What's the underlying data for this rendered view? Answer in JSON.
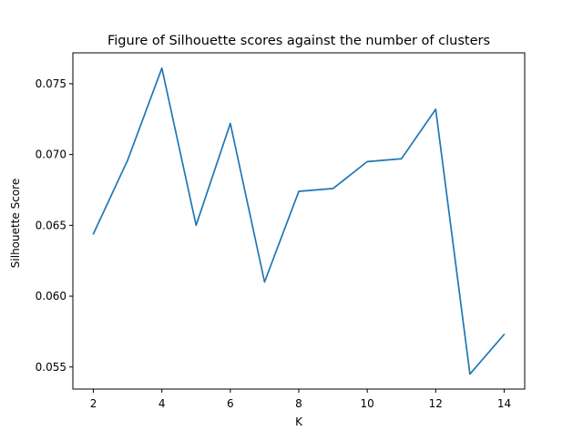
{
  "chart_data": {
    "type": "line",
    "title": "Figure of Silhouette scores against the number of clusters",
    "xlabel": "K",
    "ylabel": "Silhouette Score",
    "x": [
      2,
      3,
      4,
      5,
      6,
      7,
      8,
      9,
      10,
      11,
      12,
      13,
      14
    ],
    "series": [
      {
        "values": [
          0.0644,
          0.0696,
          0.0761,
          0.065,
          0.0722,
          0.061,
          0.0674,
          0.0676,
          0.0695,
          0.0697,
          0.0732,
          0.0545,
          0.0573
        ]
      }
    ],
    "xlim": [
      1.4,
      14.6
    ],
    "ylim": [
      0.05344,
      0.07718
    ],
    "xticks": [
      2,
      4,
      6,
      8,
      10,
      12,
      14
    ],
    "xtick_labels": [
      "2",
      "4",
      "6",
      "8",
      "10",
      "12",
      "14"
    ],
    "yticks": [
      0.055,
      0.06,
      0.065,
      0.07,
      0.075
    ],
    "ytick_labels": [
      "0.055",
      "0.060",
      "0.065",
      "0.070",
      "0.075"
    ],
    "grid": false,
    "legend": "none",
    "colors": {
      "line": "#1f77b4",
      "axes": "#000000",
      "background": "#ffffff"
    }
  }
}
